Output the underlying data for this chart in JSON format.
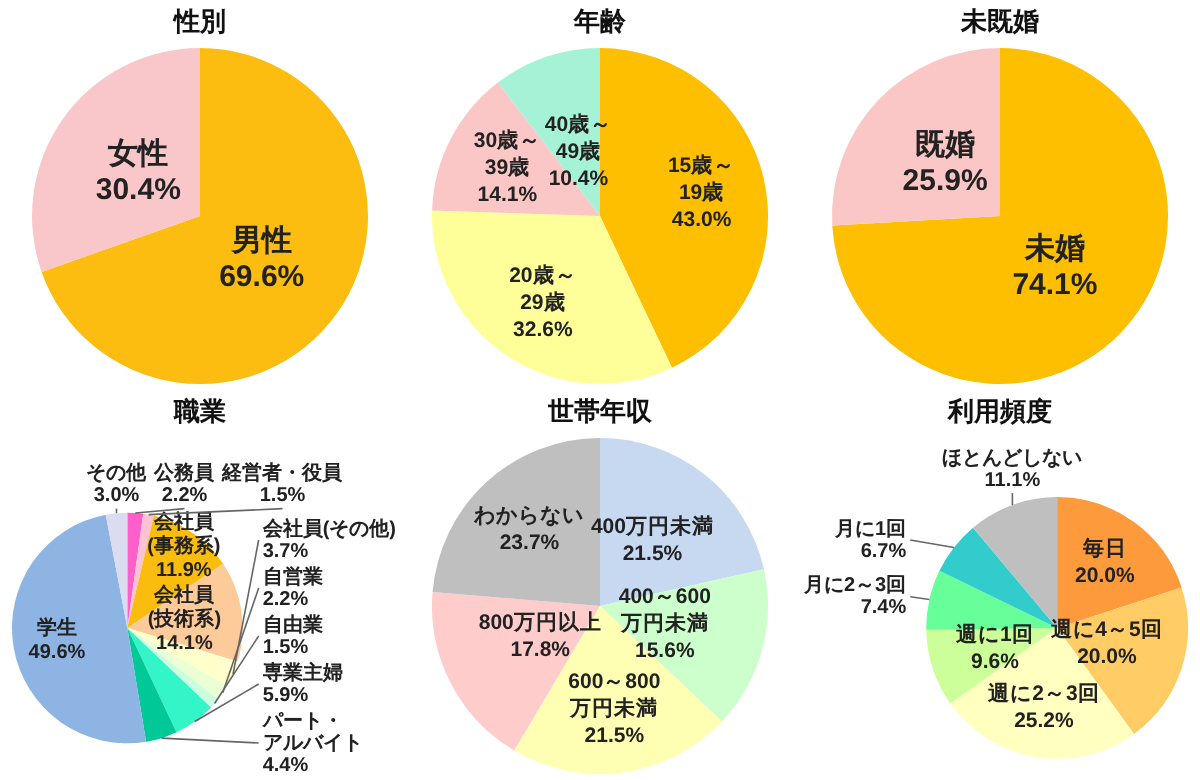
{
  "chart_data": [
    {
      "type": "pie",
      "title": "性別",
      "categories": [
        "男性",
        "女性"
      ],
      "values": [
        69.6,
        30.4
      ],
      "value_labels": [
        "69.6%",
        "30.4%"
      ],
      "colors": [
        "#fcbd10",
        "#f9c6c9"
      ]
    },
    {
      "type": "pie",
      "title": "年齢",
      "categories": [
        "15歳～\n19歳",
        "20歳～\n29歳",
        "30歳～\n39歳",
        "40歳～\n49歳"
      ],
      "values": [
        43.0,
        32.6,
        14.1,
        10.4
      ],
      "value_labels": [
        "43.0%",
        "32.6%",
        "14.1%",
        "10.4%"
      ],
      "colors": [
        "#fdbf00",
        "#ffff99",
        "#fbc6c6",
        "#a6f2d6"
      ]
    },
    {
      "type": "pie",
      "title": "未既婚",
      "categories": [
        "未婚",
        "既婚"
      ],
      "values": [
        74.1,
        25.9
      ],
      "value_labels": [
        "74.1%",
        "25.9%"
      ],
      "colors": [
        "#fdbf00",
        "#fbc6c6"
      ]
    },
    {
      "type": "pie",
      "title": "職業",
      "categories": [
        "公務員",
        "経営者・役員",
        "会社員\n(事務系)",
        "会社員\n(技術系)",
        "会社員(その他)",
        "自営業",
        "自由業",
        "専業主婦",
        "パート・アルバイト",
        "学生",
        "その他"
      ],
      "values": [
        2.2,
        1.5,
        11.9,
        14.1,
        3.7,
        2.2,
        1.5,
        5.9,
        4.4,
        49.6,
        3.0
      ],
      "value_labels": [
        "2.2%",
        "1.5%",
        "11.9%",
        "14.1%",
        "3.7%",
        "2.2%",
        "1.5%",
        "5.9%",
        "4.4%",
        "49.6%",
        "3.0%"
      ],
      "colors": [
        "#ff5fc8",
        "#f9c3d3",
        "#fbbd0d",
        "#fdca9a",
        "#ffffcc",
        "#ecffd4",
        "#ccffe0",
        "#33f5c8",
        "#00c896",
        "#8eb4e3",
        "#dcdcf0"
      ]
    },
    {
      "type": "pie",
      "title": "世帯年収",
      "categories": [
        "400万円未満",
        "400～600\n万円未満",
        "600～800\n万円未満",
        "800万円以上",
        "わからない"
      ],
      "values": [
        21.5,
        15.6,
        21.5,
        17.8,
        23.7
      ],
      "value_labels": [
        "21.5%",
        "15.6%",
        "21.5%",
        "17.8%",
        "23.7%"
      ],
      "colors": [
        "#c6d9f1",
        "#ccffcc",
        "#ffffb3",
        "#ffcccc",
        "#bfbfbf"
      ]
    },
    {
      "type": "pie",
      "title": "利用頻度",
      "categories": [
        "毎日",
        "週に4～5回",
        "週に2～3回",
        "週に1回",
        "月に2～3回",
        "月に1回",
        "ほとんどしない"
      ],
      "values": [
        20.0,
        20.0,
        25.2,
        9.6,
        7.4,
        6.7,
        11.1
      ],
      "value_labels": [
        "20.0%",
        "20.0%",
        "25.2%",
        "9.6%",
        "7.4%",
        "6.7%",
        "11.1%"
      ],
      "colors": [
        "#fd9a3b",
        "#ffcc66",
        "#ffffc0",
        "#ccff99",
        "#66ff99",
        "#33cccc",
        "#bfbfbf"
      ]
    }
  ]
}
